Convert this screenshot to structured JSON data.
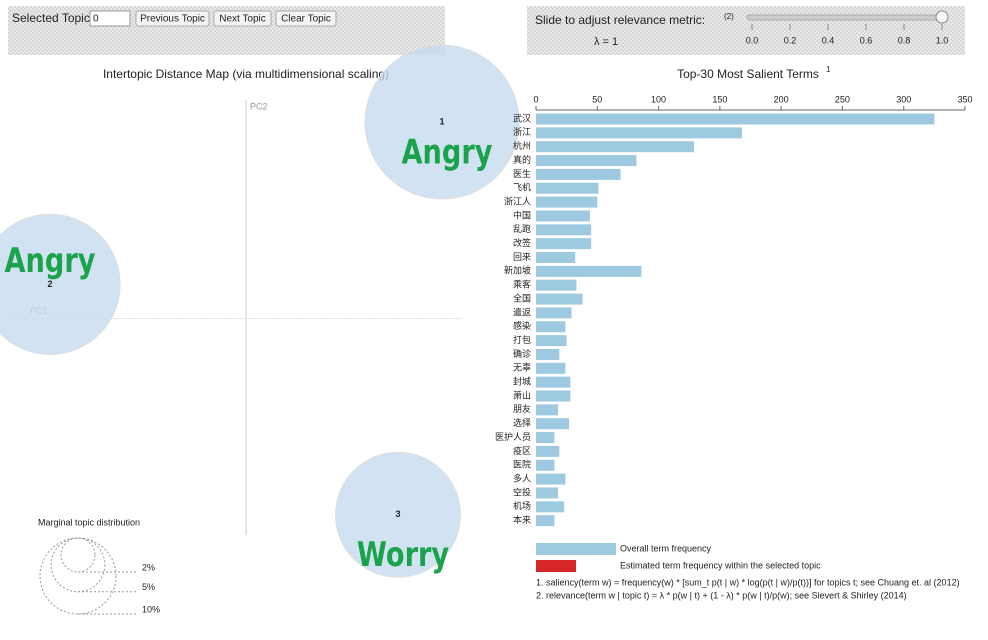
{
  "controls": {
    "topic_label": "Selected Topic:",
    "topic_value": "0",
    "buttons": [
      "Previous Topic",
      "Next Topic",
      "Clear Topic"
    ],
    "slider_label": "Slide to adjust relevance metric:",
    "slider_note": "(2)",
    "lambda_label": "λ = 1",
    "slider_value": 1,
    "slider_ticks": [
      {
        "value": 0,
        "label": "0.0"
      },
      {
        "value": 0.2,
        "label": "0.2"
      },
      {
        "value": 0.4,
        "label": "0.4"
      },
      {
        "value": 0.6,
        "label": "0.6"
      },
      {
        "value": 0.8,
        "label": "0.8"
      },
      {
        "value": 1,
        "label": "1.0"
      }
    ]
  },
  "chart_data": [
    {
      "type": "scatter",
      "title": "Intertopic Distance Map (via multidimensional scaling)",
      "x_label": "PC1",
      "y_label": "PC2",
      "xlim": [
        -0.615,
        0.54
      ],
      "ylim": [
        -0.79,
        0.62
      ],
      "color": "#c6dbef",
      "topics": [
        {
          "label": "1",
          "x": 0.49,
          "y": 0.49,
          "size": 41,
          "annotation": "Angry"
        },
        {
          "label": "2",
          "x": -0.49,
          "y": 0.085,
          "size": 34,
          "annotation": "Angry"
        },
        {
          "label": "3",
          "x": 0.38,
          "y": -0.49,
          "size": 27,
          "annotation": "Worry"
        }
      ],
      "size_legend": {
        "title": "Marginal topic distribution",
        "sizes": [
          {
            "value": 2,
            "label": "2%"
          },
          {
            "value": 5,
            "label": "5%"
          },
          {
            "value": 10,
            "label": "10%"
          }
        ]
      }
    },
    {
      "type": "bar",
      "title": "Top-30 Most Salient Terms",
      "title_note": "1",
      "categories": [
        "武汉",
        "浙江",
        "杭州",
        "真的",
        "医生",
        "飞机",
        "浙江人",
        "中国",
        "乱跑",
        "改签",
        "回来",
        "新加坡",
        "乘客",
        "全国",
        "遣返",
        "感染",
        "打包",
        "确诊",
        "无辜",
        "封城",
        "萧山",
        "朋友",
        "选择",
        "医护人员",
        "疫区",
        "医院",
        "多人",
        "空投",
        "机场",
        "本来"
      ],
      "values": [
        325,
        168,
        129,
        82,
        69,
        51,
        50,
        44,
        45,
        45,
        32,
        86,
        33,
        38,
        29,
        24,
        25,
        19,
        24,
        28,
        28,
        18,
        27,
        15,
        19,
        15,
        24,
        18,
        23,
        15
      ],
      "xlim": [
        0,
        350
      ],
      "xticks": [
        0,
        50,
        100,
        150,
        200,
        250,
        300,
        350
      ],
      "color": "#9ecae1",
      "legend": [
        {
          "name": "Overall term frequency",
          "color": "#9ecae1"
        },
        {
          "name": "Estimated term frequency within the selected topic",
          "color": "#d62728"
        }
      ],
      "footnotes": [
        "1. saliency(term w) = frequency(w) * [sum_t p(t | w) * log(p(t | w)/p(t))] for topics t; see Chuang et. al (2012)",
        "2. relevance(term w | topic t) = λ * p(w | t) + (1 - λ) * p(w | t)/p(w); see Sievert & Shirley (2014)"
      ]
    }
  ]
}
